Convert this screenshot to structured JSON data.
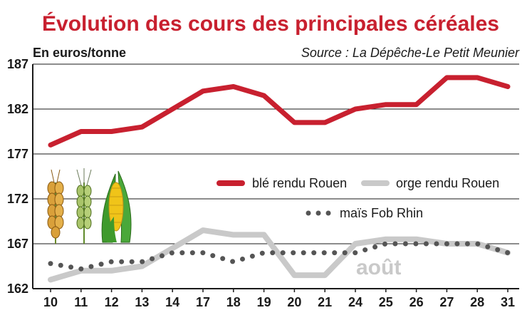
{
  "chart_data": {
    "type": "line",
    "title": "Évolution des cours des principales céréales",
    "ylabel": "En euros/tonne",
    "source": "Source : La Dépêche-Le Petit Meunier",
    "xlabel": "",
    "categories": [
      "10",
      "11",
      "12",
      "13",
      "14",
      "17",
      "18",
      "19",
      "20",
      "21",
      "24",
      "25",
      "26",
      "27",
      "28",
      "31"
    ],
    "ylim": [
      162,
      187
    ],
    "yticks": [
      187,
      182,
      177,
      172,
      167,
      162
    ],
    "grid": true,
    "legend_position": "middle-right",
    "annotation": "août",
    "series": [
      {
        "name": "blé rendu Rouen",
        "style": "solid",
        "color": "#c8202f",
        "values": [
          178,
          179.5,
          179.5,
          180,
          182,
          184,
          184.5,
          183.5,
          180.5,
          180.5,
          182,
          182.5,
          182.5,
          185.5,
          185.5,
          184.5
        ]
      },
      {
        "name": "orge rendu Rouen",
        "style": "solid",
        "color": "#c9c9c9",
        "values": [
          163,
          164,
          164,
          164.5,
          166.5,
          168.5,
          168,
          168,
          163.5,
          163.5,
          167,
          167.5,
          167.5,
          167,
          167,
          166
        ]
      },
      {
        "name": "maïs Fob Rhin",
        "style": "dotted",
        "color": "#555555",
        "values": [
          164.8,
          164.2,
          165,
          165,
          166,
          166,
          165,
          166,
          166,
          166,
          166,
          167,
          167,
          167,
          167,
          166
        ]
      }
    ]
  }
}
